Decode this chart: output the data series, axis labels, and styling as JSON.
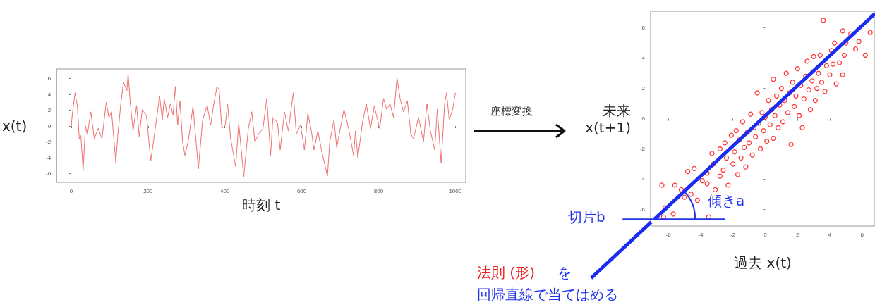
{
  "chart_data": [
    {
      "type": "line",
      "xlabel": "時刻 t",
      "ylabel": "x(t)",
      "xlim": [
        -38,
        1027
      ],
      "ylim": [
        -7.1,
        7.2
      ],
      "xticks": [
        0,
        200,
        400,
        600,
        800,
        1000
      ],
      "yticks": [
        -6,
        -4,
        -2,
        0,
        2,
        4,
        6
      ],
      "color": "#f07070",
      "x": [
        0,
        3,
        10,
        16,
        21,
        25,
        31,
        37,
        42,
        51,
        60,
        70,
        80,
        91,
        98,
        105,
        116,
        121,
        129,
        136,
        145,
        148,
        154,
        161,
        170,
        177,
        185,
        196,
        207,
        216,
        230,
        237,
        242,
        251,
        258,
        265,
        271,
        277,
        283,
        290,
        296,
        305,
        317,
        331,
        342,
        354,
        363,
        370,
        379,
        385,
        392,
        401,
        407,
        415,
        428,
        436,
        449,
        461,
        470,
        478,
        488,
        499,
        509,
        519,
        525,
        537,
        544,
        555,
        565,
        578,
        586,
        597,
        607,
        616,
        625,
        632,
        642,
        653,
        667,
        673,
        684,
        691,
        710,
        722,
        735,
        740,
        746,
        758,
        768,
        779,
        789,
        803,
        813,
        821,
        830,
        839,
        848,
        856,
        865,
        875,
        884,
        891,
        904,
        917,
        926,
        935,
        946,
        953,
        963,
        972,
        977,
        984,
        993,
        1000
      ],
      "values": [
        0,
        1.6,
        4.2,
        2.5,
        -1.6,
        -1.2,
        -5.6,
        0,
        -1.1,
        1.8,
        -1.6,
        -0.3,
        -1.6,
        3,
        1.1,
        1.8,
        -4.6,
        -1.3,
        2.8,
        5.5,
        4.5,
        6.6,
        2.8,
        -0.6,
        2.6,
        -1.3,
        2.1,
        1.3,
        -4.4,
        -1.3,
        3.8,
        0.8,
        3.4,
        1.1,
        2.8,
        1.4,
        5,
        0.1,
        3.2,
        -2,
        -3.7,
        -1.8,
        2.5,
        -5.4,
        0.8,
        2.6,
        0.1,
        2.5,
        4.9,
        4.7,
        -0.3,
        0.1,
        2.8,
        -1.6,
        -5.1,
        0.4,
        -6.4,
        -0.3,
        1.8,
        -2,
        -1,
        -0.3,
        3.5,
        -3.7,
        1.1,
        0.4,
        -3,
        1.8,
        -0.6,
        4.2,
        -1,
        0.1,
        -3,
        1.6,
        -0.6,
        -3,
        -0.6,
        -3.4,
        -6.3,
        -2,
        0.8,
        -2.7,
        2.1,
        -0.3,
        -3.7,
        -0.6,
        -4,
        0.4,
        2.8,
        -0.3,
        2.5,
        -0.3,
        3.5,
        2.1,
        2.8,
        1.1,
        6.1,
        3.5,
        1.8,
        3.2,
        -1,
        -1.6,
        1.1,
        -2,
        2.8,
        -0.6,
        -3,
        2.1,
        -4.7,
        2.8,
        4.2,
        0.8,
        2.1,
        4.2
      ]
    },
    {
      "type": "scatter",
      "xlabel": "過去 x(t)",
      "ylabel": "未来\nx(t+1)",
      "xlim": [
        -7.1,
        6.8
      ],
      "ylim": [
        -7.1,
        7.1
      ],
      "xticks": [
        -6,
        -4,
        -2,
        0,
        2,
        4,
        6
      ],
      "yticks": [
        -6,
        -4,
        -2,
        0,
        2,
        4,
        6
      ],
      "marker": "circle",
      "annotations": [
        "座標変換",
        {
          "text": "傾きa",
          "x": -5.4,
          "y": -5.19
        },
        "切片b",
        "法則 (形)",
        "を",
        {
          "text": "回帰直線で当てはめる",
          "x": -6.87,
          "y": -6.65
        }
      ],
      "series": [
        {
          "type": "scatter",
          "color": "#ff3030",
          "x": [
            -6.4,
            -5.6,
            -6.2,
            -5.7,
            -5.0,
            -5.2,
            -4.8,
            -4.4,
            -4.6,
            -4.2,
            -3.9,
            -3.6,
            -3.6,
            -3.5,
            -3.3,
            -3.2,
            -3.1,
            -2.8,
            -2.8,
            -2.6,
            -2.5,
            -2.4,
            -2.3,
            -2.1,
            -2.0,
            -1.9,
            -1.8,
            -1.7,
            -1.6,
            -1.5,
            -1.4,
            -1.3,
            -1.2,
            -1.1,
            -1.0,
            -0.9,
            -0.8,
            -0.7,
            -0.6,
            -0.5,
            -0.4,
            -0.3,
            -0.2,
            -0.1,
            0,
            0.1,
            0.2,
            0.3,
            0.4,
            0.5,
            0.5,
            0.6,
            0.7,
            0.8,
            0.9,
            1.0,
            1.1,
            1.2,
            1.3,
            1.4,
            1.5,
            1.6,
            1.7,
            1.8,
            1.9,
            2.0,
            2.1,
            2.2,
            2.3,
            2.4,
            2.5,
            2.6,
            2.7,
            2.8,
            2.9,
            3.0,
            3.1,
            3.2,
            3.3,
            3.4,
            3.5,
            3.6,
            3.7,
            3.8,
            4.0,
            4.1,
            4.2,
            4.3,
            4.4,
            4.6,
            4.8,
            4.8,
            4.9,
            5.0,
            5.3,
            5.6,
            5.8,
            6.2,
            6.5,
            -6.3
          ],
          "values": [
            -4.4,
            -4.4,
            -5.9,
            -6.3,
            -5.2,
            -4.7,
            -3.5,
            -3.3,
            -5.0,
            -5.4,
            -4.1,
            -4.3,
            -3.6,
            -6.5,
            -2.3,
            -3.0,
            -4.7,
            -2.0,
            -3.8,
            -3.4,
            -1.6,
            -2.6,
            -4.4,
            -1.1,
            -3.0,
            -2.2,
            -0.8,
            -3.7,
            -1.4,
            -2.6,
            -0.2,
            -1.9,
            -3.2,
            -0.9,
            -1.6,
            0.3,
            -2.4,
            -0.6,
            -1.2,
            1.7,
            -0.3,
            -2.0,
            0.4,
            -0.8,
            0.1,
            -1.5,
            1.2,
            -0.4,
            0.6,
            2.6,
            -1.3,
            0.2,
            1.5,
            -0.6,
            0.9,
            2.0,
            -0.2,
            1.2,
            3.0,
            0.4,
            1.7,
            -1.7,
            2.4,
            0.8,
            1.5,
            3.3,
            0.2,
            2.2,
            -0.6,
            1.3,
            2.8,
            3.8,
            1.9,
            0.6,
            2.5,
            4.1,
            1.2,
            2.0,
            3.0,
            4.2,
            2.4,
            6.5,
            1.8,
            3.5,
            2.9,
            4.5,
            3.6,
            5.0,
            2.3,
            3.7,
            2.9,
            5.8,
            4.2,
            5.0,
            5.6,
            4.6,
            5.1,
            4.2,
            5.7,
            -6.5
          ]
        },
        {
          "type": "line",
          "marker": "none",
          "color": "#1a2cf0",
          "x": [
            -6.87,
            6.8
          ],
          "values": [
            -6.65,
            6.95
          ]
        }
      ]
    }
  ]
}
